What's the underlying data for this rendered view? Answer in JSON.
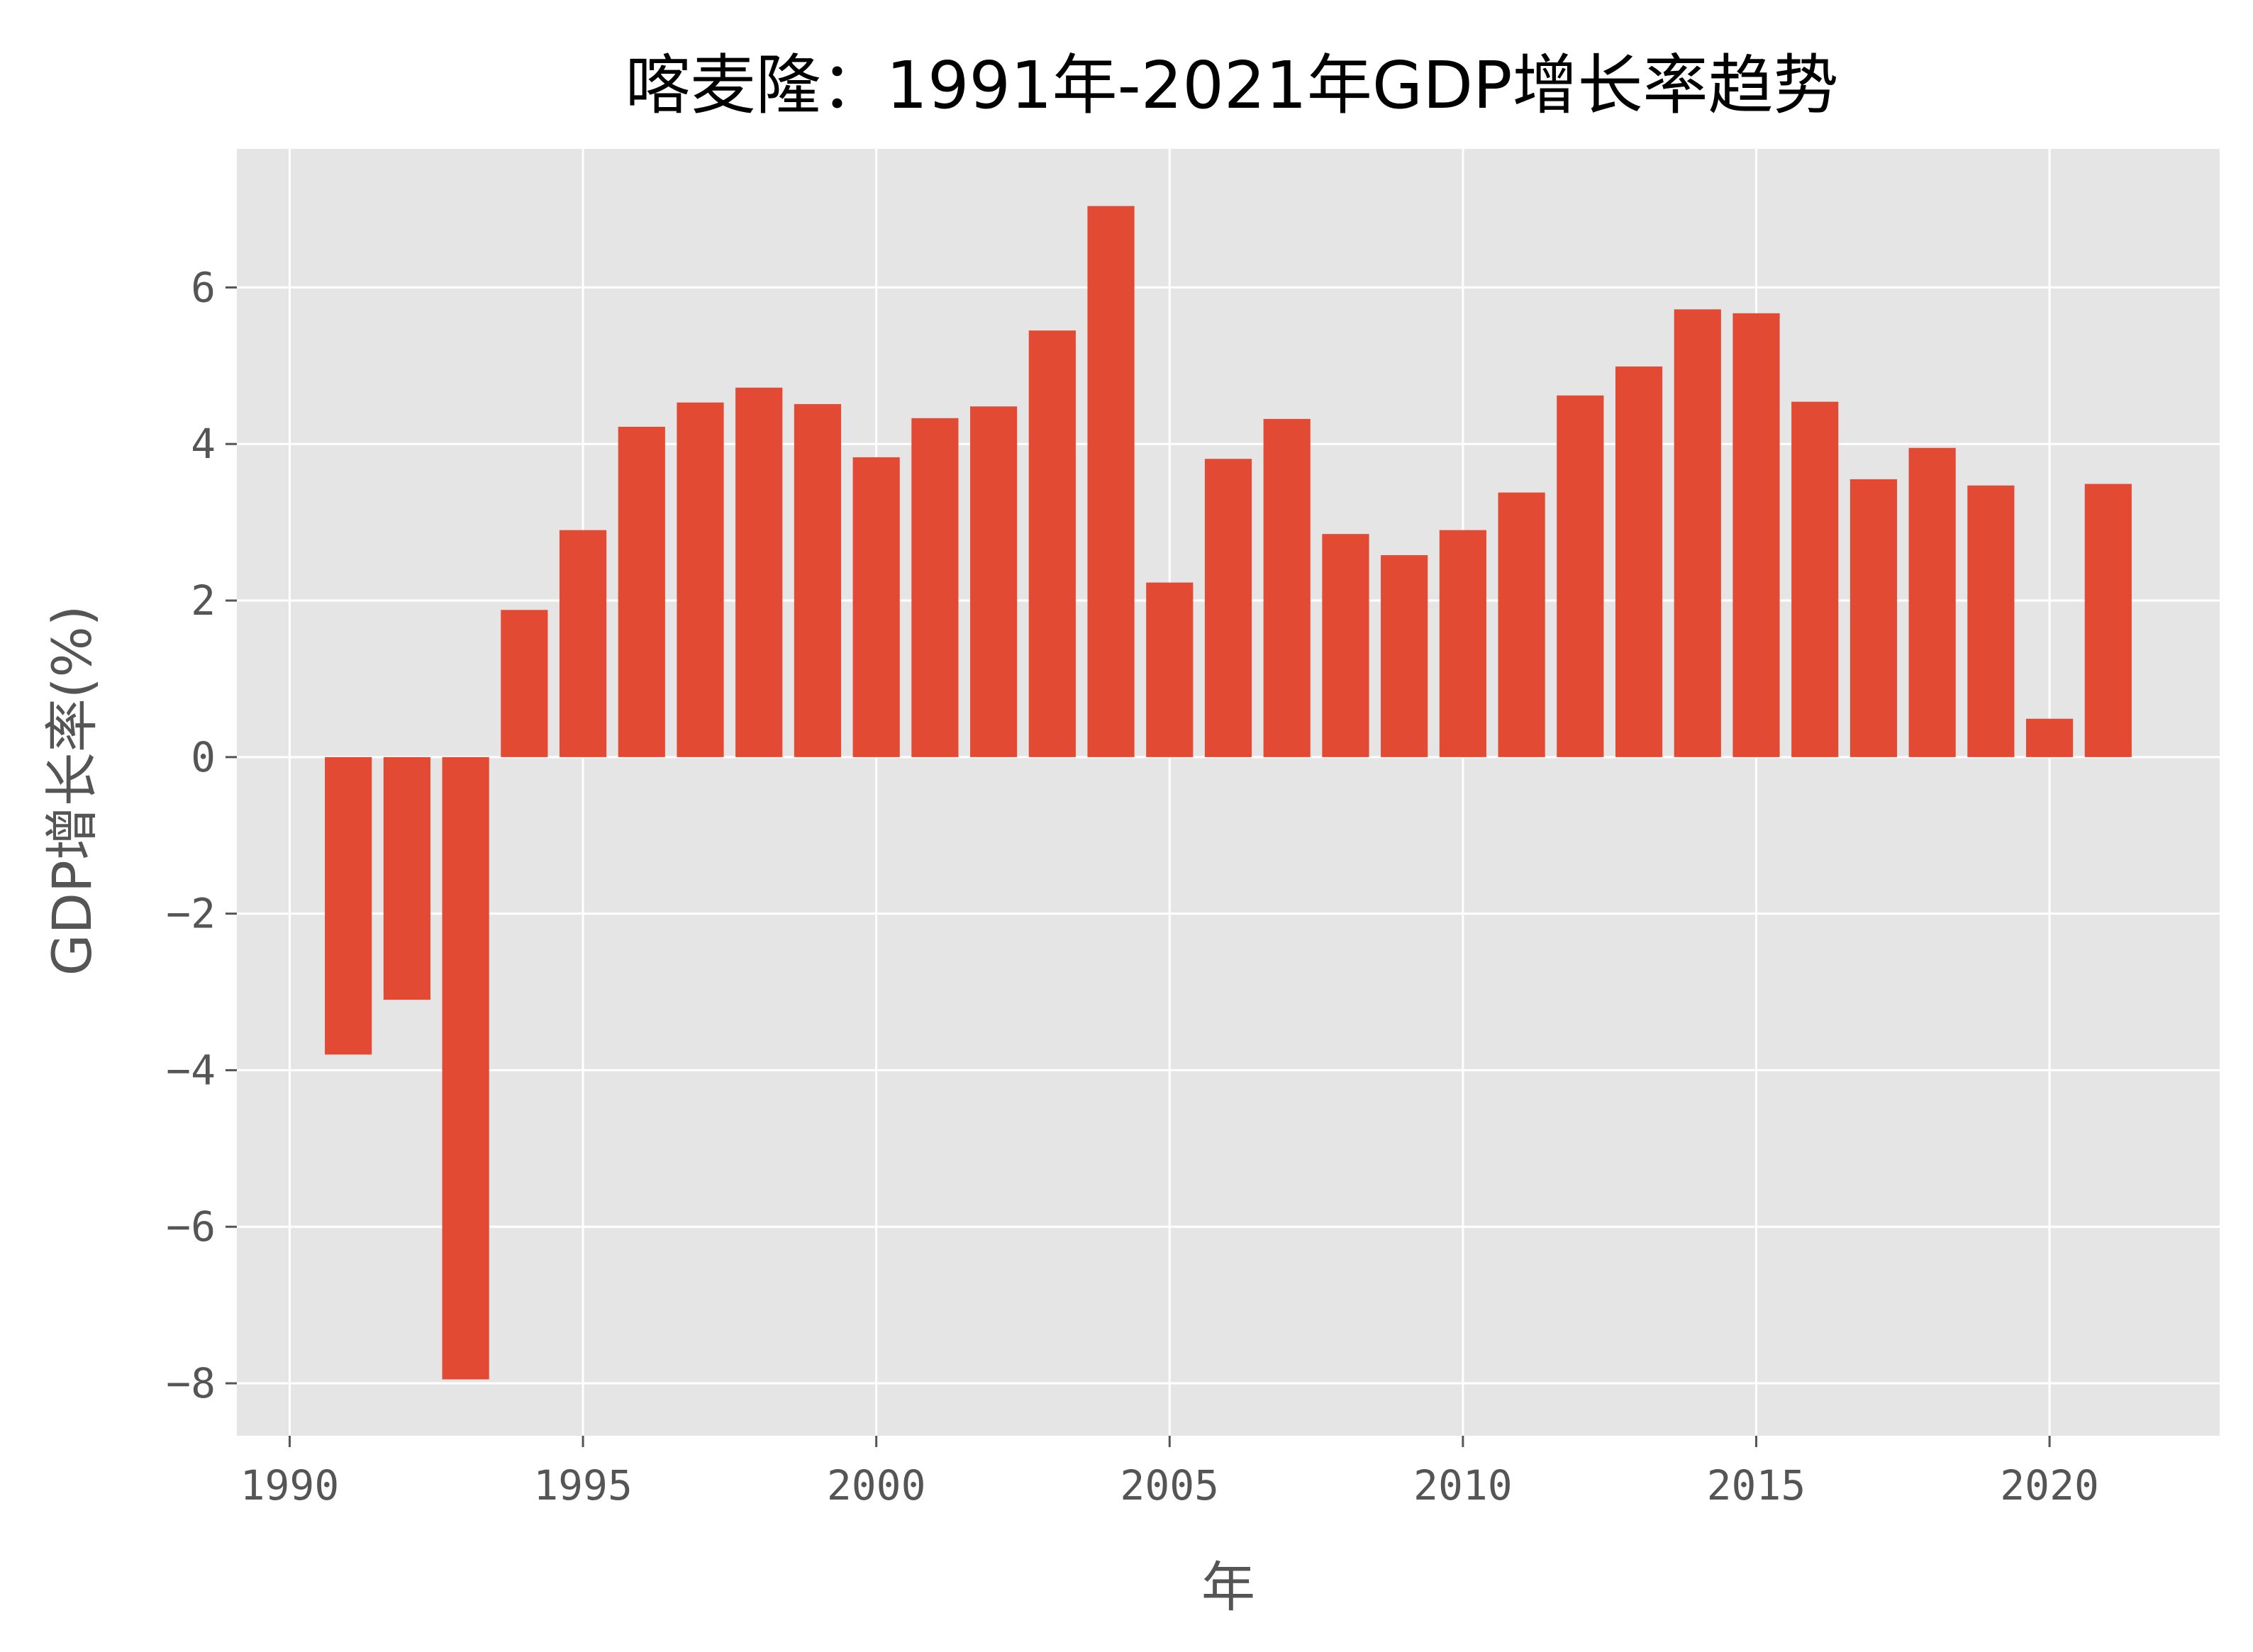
{
  "chart_data": {
    "type": "bar",
    "title": "喀麦隆：1991年-2021年GDP增长率趋势",
    "xlabel": "年",
    "ylabel": "GDP增长率(%)",
    "x": [
      1991,
      1992,
      1993,
      1994,
      1995,
      1996,
      1997,
      1998,
      1999,
      2000,
      2001,
      2002,
      2003,
      2004,
      2005,
      2006,
      2007,
      2008,
      2009,
      2010,
      2011,
      2012,
      2013,
      2014,
      2015,
      2016,
      2017,
      2018,
      2019,
      2020,
      2021
    ],
    "values": [
      -3.8,
      -3.1,
      -7.95,
      1.88,
      2.9,
      4.22,
      4.53,
      4.72,
      4.51,
      3.83,
      4.33,
      4.48,
      5.45,
      7.04,
      2.23,
      3.81,
      4.32,
      2.85,
      2.58,
      2.9,
      3.38,
      4.62,
      4.99,
      5.72,
      5.67,
      4.54,
      3.55,
      3.95,
      3.47,
      0.49,
      3.49
    ],
    "xticks": [
      1990,
      1995,
      2000,
      2005,
      2010,
      2015,
      2020
    ],
    "yticks": [
      -8,
      -6,
      -4,
      -2,
      0,
      2,
      4,
      6
    ],
    "xlim": [
      1989.1,
      2022.9
    ],
    "ylim": [
      -8.67,
      7.77
    ],
    "grid": true,
    "colors": {
      "bar": "#E24A33",
      "background": "#E5E5E5",
      "grid": "#FFFFFF"
    }
  }
}
